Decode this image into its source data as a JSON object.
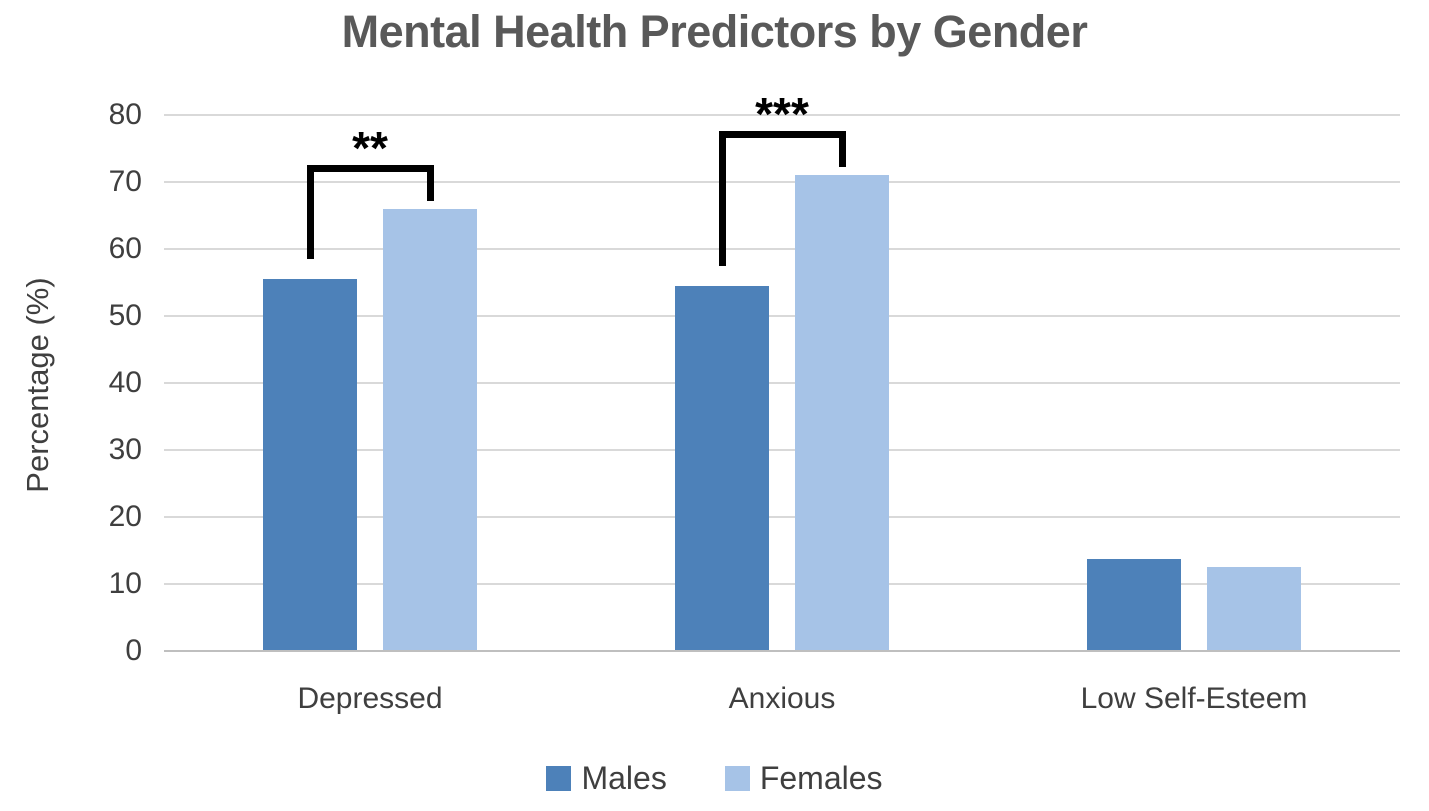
{
  "chart_data": {
    "type": "bar",
    "title": "Mental Health Predictors by Gender",
    "ylabel": "Percentage (%)",
    "xlabel": "",
    "ylim": [
      0,
      80
    ],
    "yticks": [
      0,
      10,
      20,
      30,
      40,
      50,
      60,
      70,
      80
    ],
    "grid": true,
    "legend_position": "bottom",
    "categories": [
      "Depressed",
      "Anxious",
      "Low Self-Esteem"
    ],
    "series": [
      {
        "name": "Males",
        "color": "#4D81B9",
        "values": [
          55.5,
          54.5,
          13.8
        ]
      },
      {
        "name": "Females",
        "color": "#A6C3E7",
        "values": [
          66.0,
          71.0,
          12.5
        ]
      }
    ],
    "annotations": [
      {
        "category": "Depressed",
        "label": "**",
        "type": "significance-bracket"
      },
      {
        "category": "Anxious",
        "label": "***",
        "type": "significance-bracket"
      }
    ],
    "colors": {
      "title_text": "#595959",
      "axis_text": "#3F3F3F",
      "gridline": "#D9D9D9",
      "baseline": "#BFBFBF",
      "bracket": "#000000",
      "background": "#FFFFFF"
    }
  }
}
